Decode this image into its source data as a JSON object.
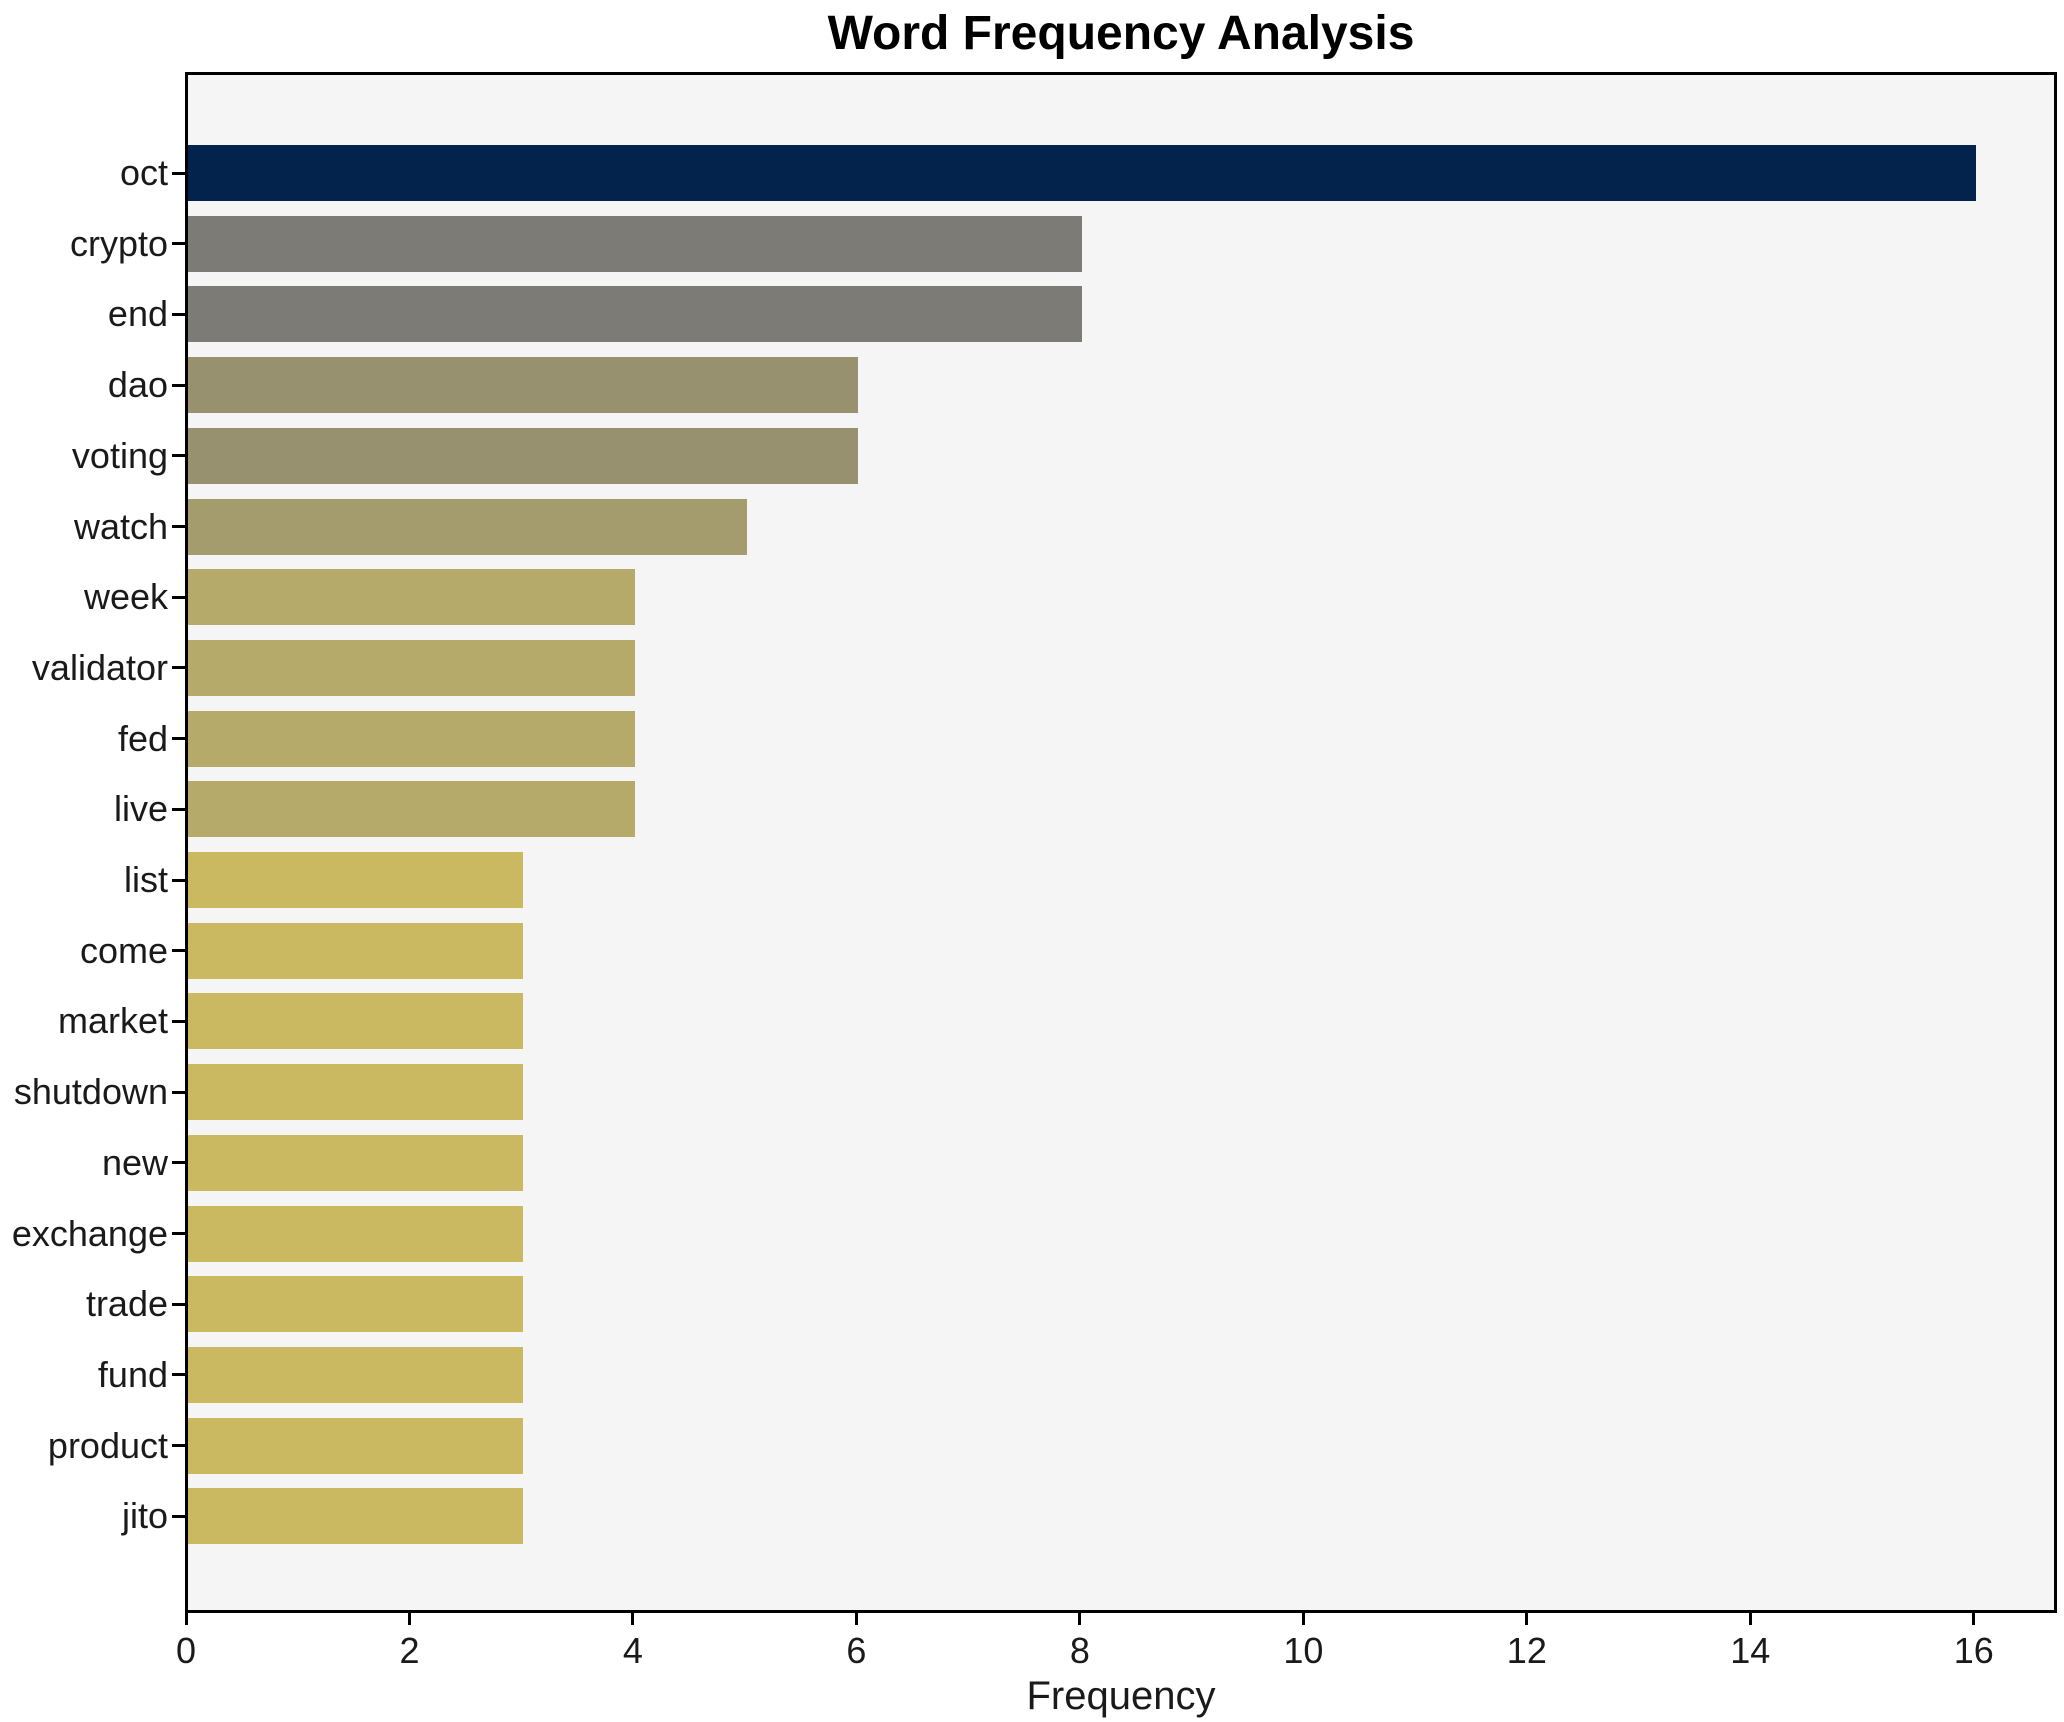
{
  "chart_data": {
    "type": "bar",
    "orientation": "horizontal",
    "title": "Word Frequency Analysis",
    "xlabel": "Frequency",
    "ylabel": "",
    "xlim": [
      0,
      16.7
    ],
    "x_ticks": [
      0,
      2,
      4,
      6,
      8,
      10,
      12,
      14,
      16
    ],
    "grid": false,
    "legend": "none",
    "plot_background": "#f5f5f6",
    "figure_background": "#ffffff",
    "accent_color": "#03234d",
    "categories": [
      "oct",
      "crypto",
      "end",
      "dao",
      "voting",
      "watch",
      "week",
      "validator",
      "fed",
      "live",
      "list",
      "come",
      "market",
      "shutdown",
      "new",
      "exchange",
      "trade",
      "fund",
      "product",
      "jito"
    ],
    "values": [
      16,
      8,
      8,
      6,
      6,
      5,
      4,
      4,
      4,
      4,
      3,
      3,
      3,
      3,
      3,
      3,
      3,
      3,
      3,
      3
    ],
    "bar_colors": [
      "#03234d",
      "#7c7b75",
      "#7c7b75",
      "#98916f",
      "#98916f",
      "#a59c6e",
      "#b5aa6a",
      "#b5aa6a",
      "#b5aa6a",
      "#b5aa6a",
      "#cbb962",
      "#cbb962",
      "#cbb962",
      "#cbb962",
      "#cbb962",
      "#cbb962",
      "#cbb962",
      "#cbb962",
      "#cbb962",
      "#cbb962"
    ]
  }
}
